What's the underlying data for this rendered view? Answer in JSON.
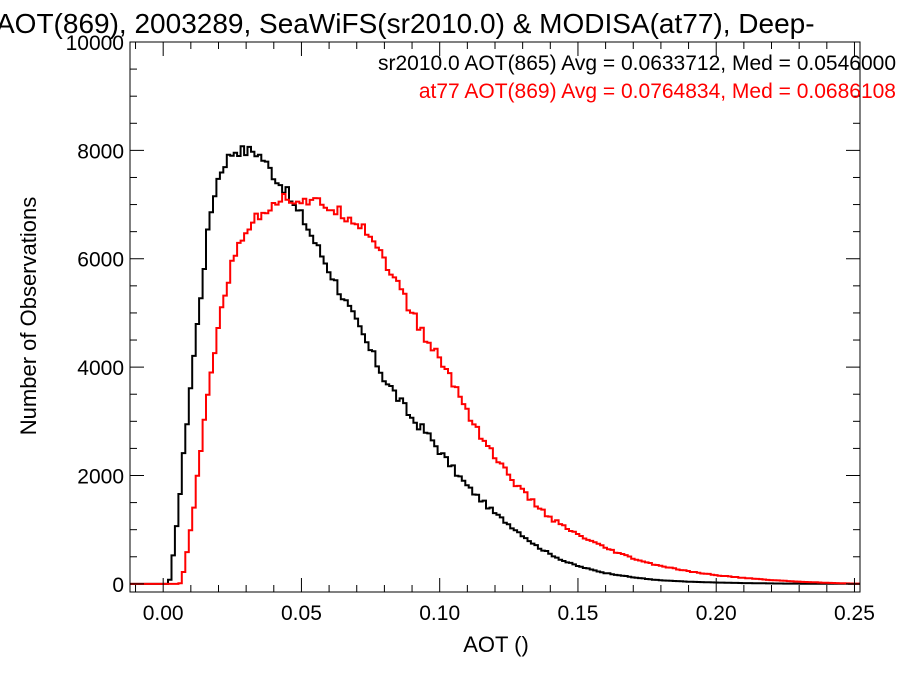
{
  "chart_data": {
    "type": "line",
    "title": "AOT(869), 2003289, SeaWiFS(sr2010.0) & MODISA(at77), Deep-",
    "xlabel": "AOT ()",
    "ylabel": "Number of Observations",
    "xlim": [
      -0.012,
      0.252
    ],
    "ylim": [
      -150,
      10000
    ],
    "xticks": [
      0.0,
      0.05,
      0.1,
      0.15,
      0.2,
      0.25
    ],
    "xtick_labels": [
      "0.00",
      "0.05",
      "0.10",
      "0.15",
      "0.20",
      "0.25"
    ],
    "yticks": [
      0,
      2000,
      4000,
      6000,
      8000,
      10000
    ],
    "ytick_labels": [
      "0",
      "2000",
      "4000",
      "6000",
      "8000",
      "10000"
    ],
    "grid": false,
    "legend_placement": "top-right",
    "series": [
      {
        "label": "sr2010.0 AOT(865) Avg = 0.0633712, Med = 0.0546000",
        "color": "#000000",
        "x": [
          -0.012,
          0.002,
          0.003,
          0.004,
          0.006,
          0.008,
          0.01,
          0.012,
          0.014,
          0.016,
          0.018,
          0.02,
          0.022,
          0.024,
          0.026,
          0.028,
          0.03,
          0.032,
          0.034,
          0.036,
          0.038,
          0.04,
          0.042,
          0.044,
          0.046,
          0.048,
          0.05,
          0.052,
          0.054,
          0.056,
          0.058,
          0.06,
          0.062,
          0.064,
          0.066,
          0.068,
          0.07,
          0.072,
          0.074,
          0.076,
          0.078,
          0.08,
          0.082,
          0.084,
          0.086,
          0.088,
          0.09,
          0.092,
          0.095,
          0.098,
          0.1,
          0.103,
          0.106,
          0.11,
          0.115,
          0.12,
          0.125,
          0.13,
          0.135,
          0.14,
          0.145,
          0.15,
          0.155,
          0.16,
          0.165,
          0.17,
          0.175,
          0.18,
          0.19,
          0.2,
          0.21,
          0.22,
          0.23,
          0.24,
          0.25
        ],
        "y": [
          0,
          0,
          200,
          700,
          1600,
          2700,
          3700,
          4600,
          5500,
          6400,
          7100,
          7500,
          7750,
          7900,
          8000,
          8000,
          7980,
          8000,
          7950,
          7850,
          7700,
          7550,
          7400,
          7300,
          7100,
          6900,
          6800,
          6600,
          6400,
          6200,
          6000,
          5800,
          5600,
          5400,
          5200,
          5000,
          4800,
          4600,
          4400,
          4200,
          4000,
          3800,
          3650,
          3500,
          3350,
          3200,
          3050,
          2950,
          2800,
          2600,
          2450,
          2250,
          2050,
          1800,
          1550,
          1300,
          1100,
          900,
          700,
          550,
          420,
          330,
          260,
          200,
          160,
          120,
          90,
          65,
          40,
          25,
          15,
          8,
          4,
          2,
          0
        ]
      },
      {
        "label": "at77 AOT(869) Avg = 0.0764834, Med = 0.0686108",
        "color": "#ff0000",
        "x": [
          -0.012,
          0.006,
          0.007,
          0.008,
          0.01,
          0.012,
          0.014,
          0.016,
          0.018,
          0.02,
          0.022,
          0.024,
          0.026,
          0.028,
          0.03,
          0.032,
          0.034,
          0.036,
          0.038,
          0.04,
          0.042,
          0.044,
          0.046,
          0.048,
          0.05,
          0.052,
          0.054,
          0.056,
          0.058,
          0.06,
          0.062,
          0.064,
          0.066,
          0.068,
          0.07,
          0.072,
          0.074,
          0.076,
          0.078,
          0.08,
          0.082,
          0.084,
          0.086,
          0.088,
          0.09,
          0.093,
          0.096,
          0.1,
          0.104,
          0.108,
          0.112,
          0.116,
          0.12,
          0.125,
          0.13,
          0.135,
          0.14,
          0.145,
          0.15,
          0.155,
          0.16,
          0.165,
          0.17,
          0.175,
          0.18,
          0.19,
          0.2,
          0.21,
          0.22,
          0.23,
          0.24,
          0.25
        ],
        "y": [
          0,
          0,
          100,
          400,
          1000,
          1800,
          2600,
          3400,
          4100,
          4800,
          5300,
          5700,
          6050,
          6350,
          6550,
          6650,
          6750,
          6850,
          6950,
          7050,
          7100,
          7120,
          7100,
          7100,
          7080,
          7050,
          7000,
          7050,
          7000,
          6950,
          6900,
          6850,
          6800,
          6750,
          6700,
          6600,
          6500,
          6350,
          6200,
          6000,
          5800,
          5600,
          5400,
          5200,
          5000,
          4700,
          4450,
          4150,
          3800,
          3400,
          3000,
          2650,
          2350,
          2000,
          1700,
          1450,
          1220,
          1050,
          900,
          780,
          660,
          560,
          470,
          390,
          330,
          230,
          160,
          110,
          70,
          40,
          20,
          5
        ]
      }
    ]
  }
}
